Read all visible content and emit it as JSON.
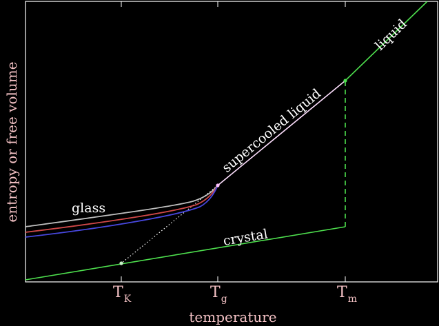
{
  "axes": {
    "xlabel": "temperature",
    "ylabel": "entropy or free volume"
  },
  "ticks": [
    {
      "main": "T",
      "sub": "K"
    },
    {
      "main": "T",
      "sub": "g"
    },
    {
      "main": "T",
      "sub": "m"
    }
  ],
  "labels": {
    "glass": "glass",
    "supercooled": "supercooled liquid",
    "liquid": "liquid",
    "crystal": "crystal"
  },
  "colors": {
    "background": "#000000",
    "axes": "#ffffff",
    "axis_labels": "#f3c1c4",
    "liquid_line": "#4ee04e",
    "supercooled_line": "#ffe0ff",
    "glass_slow": "#c0c0c0",
    "glass_medium": "#d04848",
    "glass_fast": "#4848e0",
    "crystal_line": "#4ee04e",
    "marker": "#c9f3c9",
    "tg_marker": "#ffc0ff"
  }
}
